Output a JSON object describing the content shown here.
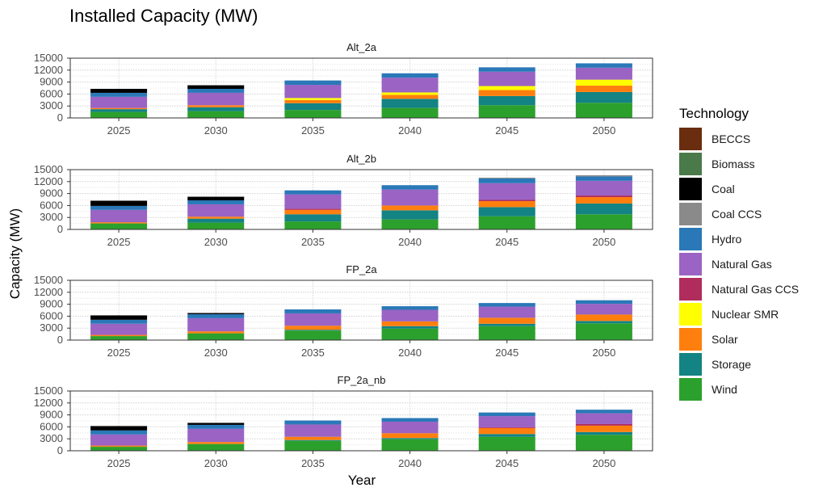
{
  "chart_data": {
    "type": "bar",
    "stacked": true,
    "title": "Installed Capacity (MW)",
    "xlabel": "Year",
    "ylabel": "Capacity (MW)",
    "ylim": [
      0,
      15000
    ],
    "yticks": [
      "0",
      "3000",
      "6000",
      "9000",
      "12000",
      "15000"
    ],
    "categories": [
      "2025",
      "2030",
      "2035",
      "2040",
      "2045",
      "2050"
    ],
    "legend": {
      "title": "Technology",
      "position": "right",
      "items": [
        "BECCS",
        "Biomass",
        "Coal",
        "Coal CCS",
        "Hydro",
        "Natural Gas",
        "Natural Gas CCS",
        "Nuclear SMR",
        "Solar",
        "Storage",
        "Wind"
      ]
    },
    "colors": {
      "BECCS": "#6b2d0f",
      "Biomass": "#4a7a4a",
      "Coal": "#000000",
      "Coal CCS": "#8a8a8a",
      "Hydro": "#2a78b8",
      "Natural Gas": "#9a63c4",
      "Natural Gas CCS": "#b02c5c",
      "Nuclear SMR": "#ffff00",
      "Solar": "#ff7f0e",
      "Storage": "#138383",
      "Wind": "#2ca02c"
    },
    "stack_order": [
      "Wind",
      "Storage",
      "Solar",
      "Nuclear SMR",
      "Natural Gas CCS",
      "Natural Gas",
      "Hydro",
      "Coal CCS",
      "Coal",
      "Biomass",
      "BECCS"
    ],
    "facets": [
      {
        "name": "Alt_2a",
        "series": [
          {
            "name": "Wind",
            "values": [
              1500,
              1700,
              2000,
              2500,
              3200,
              3800
            ]
          },
          {
            "name": "Storage",
            "values": [
              700,
              1000,
              1700,
              2300,
              2300,
              2700
            ]
          },
          {
            "name": "Solar",
            "values": [
              300,
              500,
              800,
              1000,
              1500,
              1600
            ]
          },
          {
            "name": "Nuclear SMR",
            "values": [
              0,
              0,
              500,
              600,
              1000,
              1500
            ]
          },
          {
            "name": "Natural Gas CCS",
            "values": [
              0,
              0,
              0,
              0,
              0,
              0
            ]
          },
          {
            "name": "Natural Gas",
            "values": [
              2800,
              3100,
              3300,
              3700,
              3600,
              3000
            ]
          },
          {
            "name": "Hydro",
            "values": [
              1000,
              1000,
              1100,
              1100,
              1100,
              1100
            ]
          },
          {
            "name": "Coal CCS",
            "values": [
              0,
              0,
              0,
              0,
              0,
              0
            ]
          },
          {
            "name": "Coal",
            "values": [
              1000,
              900,
              0,
              0,
              0,
              0
            ]
          },
          {
            "name": "Biomass",
            "values": [
              0,
              0,
              0,
              0,
              0,
              0
            ]
          },
          {
            "name": "BECCS",
            "values": [
              0,
              0,
              0,
              0,
              0,
              0
            ]
          }
        ]
      },
      {
        "name": "Alt_2b",
        "series": [
          {
            "name": "Wind",
            "values": [
              1500,
              1700,
              2000,
              2500,
              3300,
              3800
            ]
          },
          {
            "name": "Storage",
            "values": [
              0,
              1000,
              1800,
              2300,
              2300,
              2700
            ]
          },
          {
            "name": "Solar",
            "values": [
              300,
              500,
              1100,
              1200,
              1500,
              1600
            ]
          },
          {
            "name": "Nuclear SMR",
            "values": [
              0,
              0,
              0,
              0,
              0,
              0
            ]
          },
          {
            "name": "Natural Gas CCS",
            "values": [
              0,
              0,
              300,
              0,
              300,
              400
            ]
          },
          {
            "name": "Natural Gas",
            "values": [
              3100,
              3100,
              3600,
              4000,
              4200,
              3700
            ]
          },
          {
            "name": "Hydro",
            "values": [
              1000,
              1000,
              1000,
              1100,
              1200,
              1100
            ]
          },
          {
            "name": "Coal CCS",
            "values": [
              0,
              0,
              0,
              0,
              200,
              300
            ]
          },
          {
            "name": "Coal",
            "values": [
              1300,
              900,
              0,
              0,
              0,
              0
            ]
          },
          {
            "name": "Biomass",
            "values": [
              0,
              0,
              0,
              0,
              0,
              0
            ]
          },
          {
            "name": "BECCS",
            "values": [
              0,
              0,
              0,
              0,
              0,
              0
            ]
          }
        ]
      },
      {
        "name": "FP_2a",
        "series": [
          {
            "name": "Wind",
            "values": [
              1000,
              1700,
              2400,
              2900,
              3500,
              4200
            ]
          },
          {
            "name": "Storage",
            "values": [
              0,
              0,
              200,
              600,
              600,
              600
            ]
          },
          {
            "name": "Solar",
            "values": [
              300,
              500,
              1000,
              1200,
              1500,
              1600
            ]
          },
          {
            "name": "Nuclear SMR",
            "values": [
              0,
              0,
              0,
              0,
              0,
              0
            ]
          },
          {
            "name": "Natural Gas CCS",
            "values": [
              0,
              0,
              0,
              0,
              0,
              0
            ]
          },
          {
            "name": "Natural Gas",
            "values": [
              2800,
              3300,
              3100,
              2900,
              2800,
              2700
            ]
          },
          {
            "name": "Hydro",
            "values": [
              1000,
              1000,
              1000,
              900,
              900,
              900
            ]
          },
          {
            "name": "Coal CCS",
            "values": [
              0,
              0,
              0,
              0,
              0,
              0
            ]
          },
          {
            "name": "Coal",
            "values": [
              1100,
              300,
              0,
              0,
              0,
              0
            ]
          },
          {
            "name": "Biomass",
            "values": [
              0,
              0,
              0,
              0,
              0,
              0
            ]
          },
          {
            "name": "BECCS",
            "values": [
              0,
              0,
              0,
              0,
              0,
              0
            ]
          }
        ]
      },
      {
        "name": "FP_2a_nb",
        "series": [
          {
            "name": "Wind",
            "values": [
              1000,
              1700,
              2500,
              2900,
              3500,
              4000
            ]
          },
          {
            "name": "Storage",
            "values": [
              0,
              0,
              200,
              300,
              700,
              700
            ]
          },
          {
            "name": "Solar",
            "values": [
              300,
              500,
              800,
              1200,
              1500,
              1600
            ]
          },
          {
            "name": "Nuclear SMR",
            "values": [
              0,
              0,
              0,
              0,
              0,
              0
            ]
          },
          {
            "name": "Natural Gas CCS",
            "values": [
              0,
              0,
              0,
              0,
              200,
              400
            ]
          },
          {
            "name": "Natural Gas",
            "values": [
              2800,
              3300,
              3100,
              2900,
              2800,
              2700
            ]
          },
          {
            "name": "Hydro",
            "values": [
              1000,
              1000,
              1000,
              900,
              900,
              900
            ]
          },
          {
            "name": "Coal CCS",
            "values": [
              0,
              0,
              0,
              0,
              0,
              0
            ]
          },
          {
            "name": "Coal",
            "values": [
              1100,
              500,
              0,
              0,
              0,
              0
            ]
          },
          {
            "name": "Biomass",
            "values": [
              0,
              0,
              0,
              0,
              0,
              0
            ]
          },
          {
            "name": "BECCS",
            "values": [
              0,
              0,
              0,
              0,
              0,
              0
            ]
          }
        ]
      }
    ]
  }
}
